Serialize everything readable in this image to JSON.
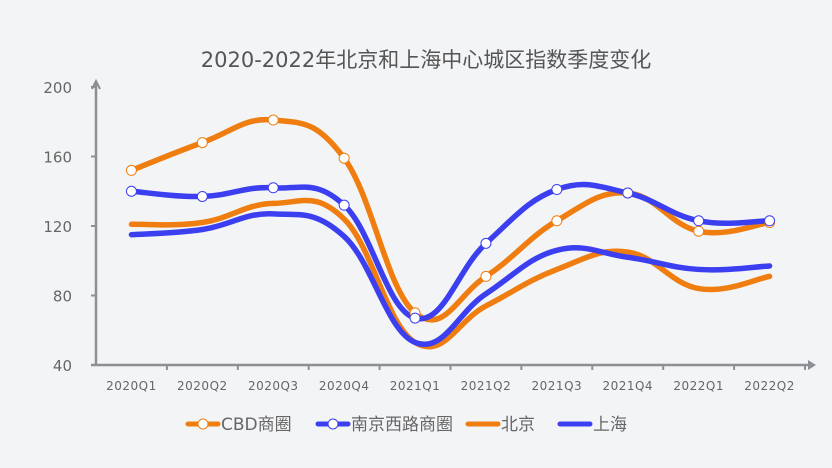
{
  "chart_data": {
    "type": "line",
    "title": "2020-2022年北京和上海中心城区指数季度变化",
    "xlabel": "",
    "ylabel": "",
    "categories": [
      "2020Q1",
      "2020Q2",
      "2020Q3",
      "2020Q4",
      "2021Q1",
      "2021Q2",
      "2021Q3",
      "2021Q4",
      "2022Q1",
      "2022Q2"
    ],
    "yticks": [
      40,
      80,
      120,
      160,
      200
    ],
    "ylim": [
      40,
      200
    ],
    "grid": false,
    "legend_position": "bottom",
    "smooth": true,
    "series": [
      {
        "name": "CBD商圈",
        "color": "#f07d0f",
        "markers": true,
        "values": [
          152,
          168,
          181,
          159,
          70,
          91,
          123,
          139,
          117,
          122
        ]
      },
      {
        "name": "南京西路商圈",
        "color": "#3b3ff0",
        "markers": true,
        "values": [
          140,
          137,
          142,
          132,
          67,
          110,
          141,
          139,
          123,
          123
        ]
      },
      {
        "name": "北京",
        "color": "#f07d0f",
        "markers": false,
        "values": [
          121,
          122,
          133,
          124,
          53,
          74,
          95,
          105,
          84,
          91
        ]
      },
      {
        "name": "上海",
        "color": "#3b3ff0",
        "markers": false,
        "values": [
          115,
          118,
          127,
          114,
          53,
          81,
          106,
          102,
          95,
          97
        ]
      }
    ],
    "axis_color": "#8e8e95"
  }
}
